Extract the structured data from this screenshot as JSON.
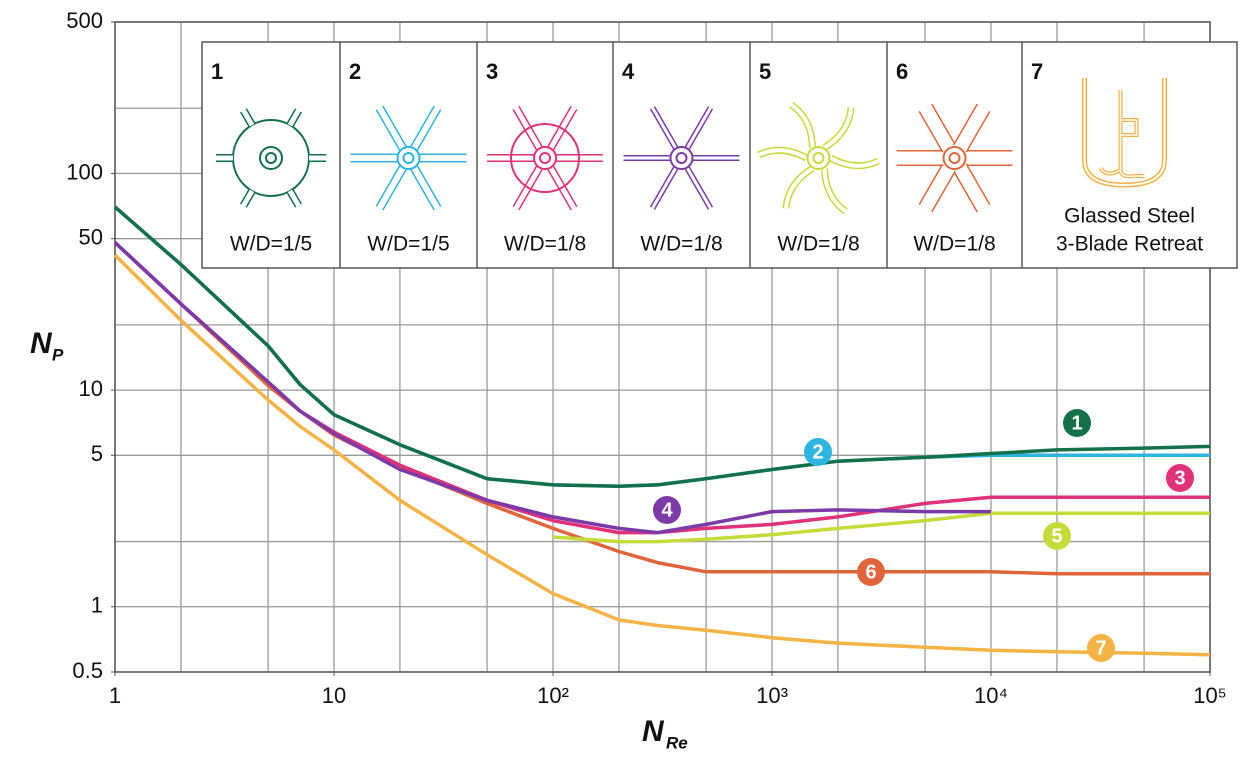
{
  "chart_data": {
    "type": "line",
    "xlabel": "N",
    "xlabel_sub": "Re",
    "ylabel": "N",
    "ylabel_sub": "P",
    "xscale": "log",
    "yscale": "log",
    "xlim": [
      1,
      100000
    ],
    "ylim": [
      0.5,
      500
    ],
    "xticks": [
      1,
      10,
      {
        "value": 100,
        "label": "10²"
      },
      {
        "value": 1000,
        "label": "10³"
      },
      {
        "value": 10000,
        "label": "10⁴"
      },
      {
        "value": 100000,
        "label": "10⁵"
      }
    ],
    "yticks": [
      0.5,
      1,
      5,
      10,
      50,
      100,
      500
    ],
    "xgrid": [
      1,
      2,
      5,
      10,
      20,
      50,
      100,
      200,
      500,
      1000,
      2000,
      5000,
      10000,
      20000,
      50000,
      100000
    ],
    "ygrid": [
      0.5,
      1,
      2,
      5,
      10,
      20,
      50,
      100,
      200,
      500
    ],
    "grid": true,
    "x": [
      1,
      2,
      5,
      7,
      10,
      20,
      50,
      100,
      200,
      300,
      500,
      1000,
      2000,
      5000,
      10000,
      20000,
      50000,
      100000
    ],
    "series": [
      {
        "name": "1",
        "color": "#137049",
        "caption": [
          "W/D=1/5"
        ],
        "values": [
          70,
          38,
          16,
          10.6,
          7.7,
          5.6,
          3.9,
          3.65,
          3.6,
          3.65,
          3.9,
          4.3,
          4.7,
          4.9,
          5.1,
          5.3,
          5.4,
          5.5
        ]
      },
      {
        "name": "2",
        "color": "#2cb5e0",
        "caption": [
          "W/D=1/5"
        ],
        "values": [
          70,
          38,
          16,
          10.6,
          7.7,
          5.6,
          3.9,
          3.65,
          3.6,
          3.65,
          3.9,
          4.3,
          4.7,
          4.9,
          5.0,
          5.0,
          5.0,
          5.0
        ]
      },
      {
        "name": "3",
        "color": "#e0317a",
        "caption": [
          "W/D=1/8"
        ],
        "values": [
          48,
          25,
          10.9,
          8,
          6.4,
          4.5,
          3.1,
          2.5,
          2.2,
          2.2,
          2.3,
          2.4,
          2.6,
          3.0,
          3.2,
          3.2,
          3.2,
          3.2
        ]
      },
      {
        "name": "4",
        "color": "#7b3aa8",
        "caption": [
          "W/D=1/8"
        ],
        "values": [
          48,
          25,
          10.9,
          8,
          6.3,
          4.3,
          3.1,
          2.6,
          2.3,
          2.2,
          2.4,
          2.75,
          2.8,
          2.75,
          2.75,
          null,
          null,
          null
        ]
      },
      {
        "name": "5",
        "color": "#c6da3a",
        "caption": [
          "W/D=1/8"
        ],
        "values": [
          null,
          null,
          null,
          null,
          null,
          null,
          null,
          2.1,
          2.0,
          2.0,
          2.05,
          2.15,
          2.3,
          2.5,
          2.7,
          2.7,
          2.7,
          2.7
        ]
      },
      {
        "name": "6",
        "color": "#e0653a",
        "caption": [
          "W/D=1/8"
        ],
        "values": [
          48,
          25,
          10.5,
          8,
          6.2,
          4.4,
          3.0,
          2.3,
          1.8,
          1.6,
          1.45,
          1.45,
          1.45,
          1.45,
          1.45,
          1.42,
          1.42,
          1.42
        ]
      },
      {
        "name": "7",
        "color": "#f3b345",
        "caption": [
          "Glassed Steel",
          "3-Blade Retreat"
        ],
        "values": [
          42,
          21,
          9,
          6.8,
          5.3,
          3.1,
          1.74,
          1.15,
          0.87,
          0.82,
          0.78,
          0.72,
          0.68,
          0.65,
          0.63,
          0.62,
          0.61,
          0.6
        ]
      }
    ]
  }
}
